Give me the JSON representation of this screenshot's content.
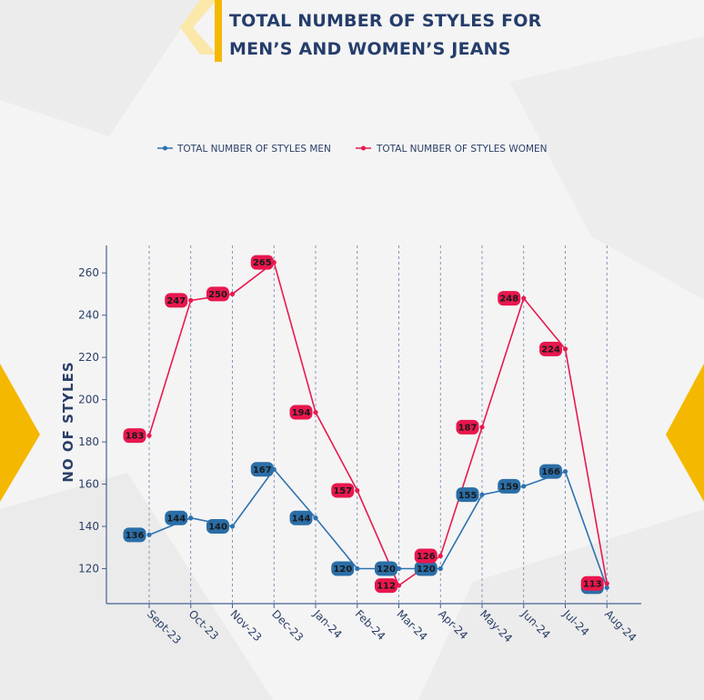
{
  "header": {
    "title_line1": "TOTAL NUMBER OF STYLES FOR",
    "title_line2": "MEN’S AND WOMEN’S JEANS"
  },
  "colors": {
    "men": "#2c72b0",
    "men_label_bg": "#2a6ea7",
    "women": "#e8194f",
    "women_label_bg": "#e8174e",
    "axis": "#47628f",
    "accent": "#f5b800"
  },
  "chart_data": {
    "type": "line",
    "categories": [
      "Sept-23",
      "Oct-23",
      "Nov-23",
      "Dec-23",
      "Jan-24",
      "Feb-24",
      "Mar-24",
      "Apr-24",
      "May-24",
      "Jun-24",
      "Jul-24",
      "Aug-24"
    ],
    "series": [
      {
        "name": "TOTAL NUMBER OF STYLES MEN",
        "values": [
          136,
          144,
          140,
          167,
          144,
          120,
          120,
          120,
          155,
          159,
          166,
          111
        ]
      },
      {
        "name": "TOTAL NUMBER OF STYLES WOMEN",
        "values": [
          183,
          247,
          250,
          265,
          194,
          157,
          112,
          126,
          187,
          248,
          224,
          113
        ]
      }
    ],
    "ylabel": "NO OF STYLES",
    "xlabel": "",
    "yticks": [
      120,
      140,
      160,
      180,
      200,
      220,
      240,
      260
    ],
    "ylim": [
      104,
      272
    ],
    "legend_position": "top-center",
    "grid": "vertical dashed lines at each category"
  }
}
